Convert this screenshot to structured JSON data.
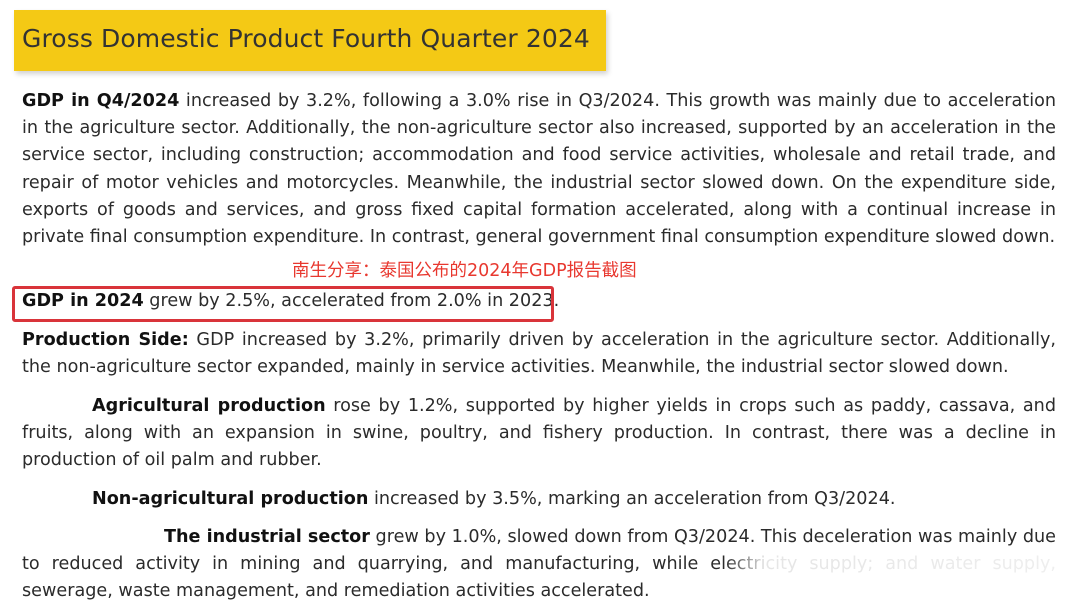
{
  "title": "Gross Domestic Product Fourth Quarter 2024",
  "overlay_caption": "南生分享：泰国公布的2024年GDP报告截图",
  "colors": {
    "title_bg": "#f4c915",
    "highlight_border": "#d9343a",
    "caption": "#e8382f"
  },
  "paragraphs": {
    "q4": {
      "lead": "GDP in Q4/2024",
      "body": " increased by 3.2%, following a 3.0% rise in Q3/2024. This growth was mainly due to acceleration in the agriculture sector. Additionally, the non-agriculture sector also increased, supported by an acceleration in the service sector, including construction; accommodation and food service activities, wholesale and retail trade, and repair of motor vehicles and motorcycles. Meanwhile, the industrial sector slowed down. On the expenditure side, exports of goods and services, and gross fixed capital formation accelerated, along with a continual increase in private final consumption expenditure. In contrast, general government final consumption expenditure slowed down."
    },
    "annual": {
      "lead": "GDP in 2024",
      "body": " grew by 2.5%, accelerated from 2.0% in 2023."
    },
    "production": {
      "lead": "Production Side:",
      "body": " GDP increased by 3.2%, primarily driven by acceleration in the agriculture sector. Additionally, the non-agriculture sector expanded, mainly in service activities. Meanwhile, the industrial sector slowed down."
    },
    "agricultural": {
      "lead": "Agricultural production",
      "body": " rose by 1.2%, supported by higher yields in crops such as paddy, cassava, and fruits, along with an expansion in swine, poultry, and fishery production. In contrast, there was a decline in production of oil palm and rubber."
    },
    "non_agricultural": {
      "lead": "Non-agricultural production",
      "body": " increased by 3.5%, marking an acceleration from Q3/2024."
    },
    "industrial": {
      "lead": "The industrial sector",
      "body": " grew by 1.0%, slowed down from Q3/2024. This deceleration was mainly due to reduced activity in mining and quarrying, and manufacturing, while electricity supply; and water supply, sewerage, waste management, and remediation activities accelerated."
    }
  }
}
